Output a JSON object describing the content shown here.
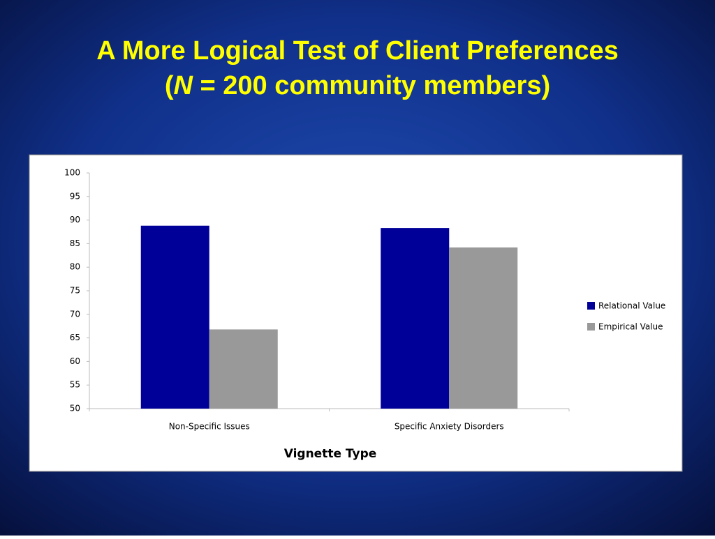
{
  "chart_data": {
    "type": "bar",
    "title": "A More Logical Test of Client Preferences",
    "subtitle": [
      "(",
      "N",
      " = 200 community members)"
    ],
    "x_label": "Vignette Type",
    "categories": [
      "Non-Specific Issues",
      "Specific Anxiety Disorders"
    ],
    "series": [
      {
        "name": "Relational Value",
        "color": "#000099",
        "values": [
          88.8,
          88.3
        ]
      },
      {
        "name": "Empirical Value",
        "color": "#999999",
        "values": [
          66.8,
          84.2
        ]
      }
    ],
    "ylim": [
      50,
      100
    ],
    "yticks": [
      50,
      55,
      60,
      65,
      70,
      75,
      80,
      85,
      90,
      95,
      100
    ],
    "grid": false,
    "legend": "right"
  }
}
